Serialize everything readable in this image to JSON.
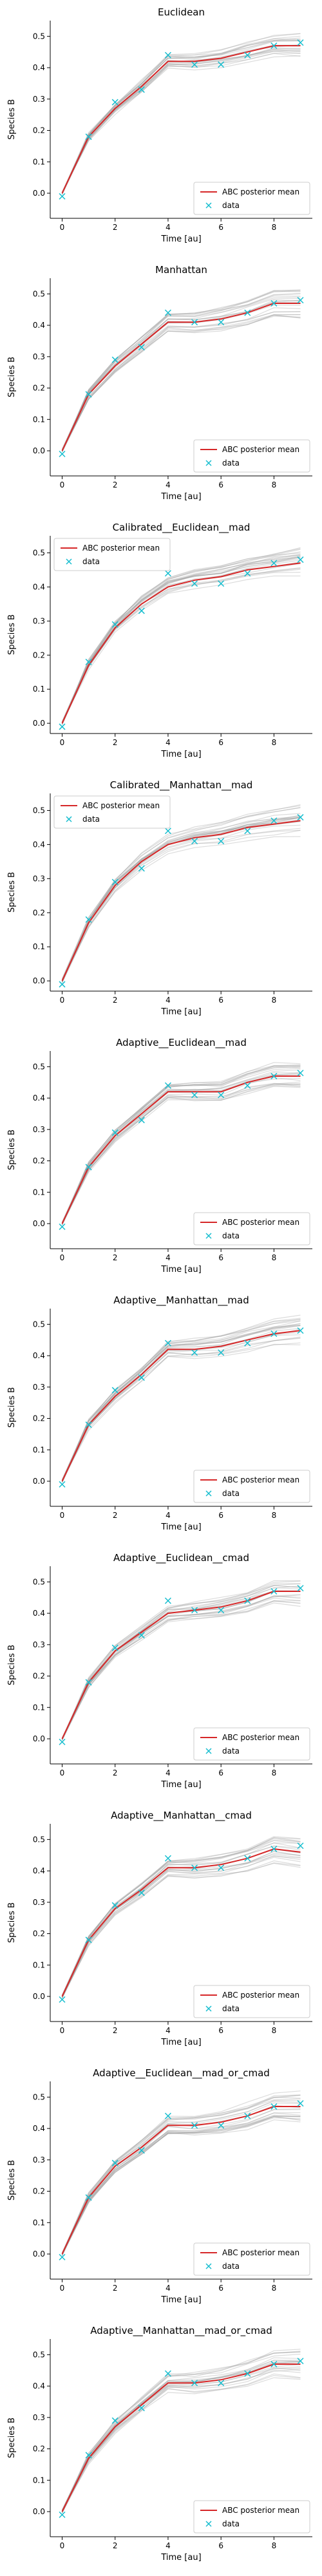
{
  "chart_data": [
    {
      "type": "line",
      "title": "Euclidean",
      "xlabel": "Time [au]",
      "ylabel": "Species B",
      "xlim": [
        -0.45,
        9.45
      ],
      "ylim": [
        -0.08,
        0.55
      ],
      "xticks": [
        0,
        2,
        4,
        6,
        8
      ],
      "yticks": [
        0.0,
        0.1,
        0.2,
        0.3,
        0.4,
        0.5
      ],
      "legend": "bottom-right",
      "legend_entries": [
        "ABC posterior mean",
        "data"
      ],
      "x": [
        0,
        1,
        2,
        3,
        4,
        5,
        6,
        7,
        8,
        9
      ],
      "series": [
        {
          "name": "ABC posterior mean",
          "values": [
            0.0,
            0.18,
            0.27,
            0.34,
            0.42,
            0.42,
            0.43,
            0.45,
            0.47,
            0.47
          ],
          "color": "#d62728"
        },
        {
          "name": "data",
          "values": [
            -0.01,
            0.18,
            0.29,
            0.33,
            0.44,
            0.41,
            0.41,
            0.44,
            0.47,
            0.48
          ],
          "color": "#17becf"
        }
      ]
    },
    {
      "type": "line",
      "title": "Manhattan",
      "xlabel": "Time [au]",
      "ylabel": "Species B",
      "xlim": [
        -0.45,
        9.45
      ],
      "ylim": [
        -0.08,
        0.55
      ],
      "xticks": [
        0,
        2,
        4,
        6,
        8
      ],
      "yticks": [
        0.0,
        0.1,
        0.2,
        0.3,
        0.4,
        0.5
      ],
      "legend": "bottom-right",
      "legend_entries": [
        "ABC posterior mean",
        "data"
      ],
      "x": [
        0,
        1,
        2,
        3,
        4,
        5,
        6,
        7,
        8,
        9
      ],
      "series": [
        {
          "name": "ABC posterior mean",
          "values": [
            0.0,
            0.18,
            0.27,
            0.34,
            0.41,
            0.41,
            0.42,
            0.44,
            0.47,
            0.47
          ],
          "color": "#d62728"
        },
        {
          "name": "data",
          "values": [
            -0.01,
            0.18,
            0.29,
            0.33,
            0.44,
            0.41,
            0.41,
            0.44,
            0.47,
            0.48
          ],
          "color": "#17becf"
        }
      ]
    },
    {
      "type": "line",
      "title": "Calibrated__Euclidean__mad",
      "xlabel": "Time [au]",
      "ylabel": "Species B",
      "xlim": [
        -0.45,
        9.45
      ],
      "ylim": [
        -0.03,
        0.55
      ],
      "xticks": [
        0,
        2,
        4,
        6,
        8
      ],
      "yticks": [
        0.0,
        0.1,
        0.2,
        0.3,
        0.4,
        0.5
      ],
      "legend": "top-left",
      "legend_entries": [
        "ABC posterior mean",
        "data"
      ],
      "x": [
        0,
        1,
        2,
        3,
        4,
        5,
        6,
        7,
        8,
        9
      ],
      "series": [
        {
          "name": "ABC posterior mean",
          "values": [
            0.0,
            0.17,
            0.28,
            0.35,
            0.4,
            0.42,
            0.43,
            0.45,
            0.46,
            0.47
          ],
          "color": "#d62728"
        },
        {
          "name": "data",
          "values": [
            -0.01,
            0.18,
            0.29,
            0.33,
            0.44,
            0.41,
            0.41,
            0.44,
            0.47,
            0.48
          ],
          "color": "#17becf"
        }
      ]
    },
    {
      "type": "line",
      "title": "Calibrated__Manhattan__mad",
      "xlabel": "Time [au]",
      "ylabel": "Species B",
      "xlim": [
        -0.45,
        9.45
      ],
      "ylim": [
        -0.03,
        0.55
      ],
      "xticks": [
        0,
        2,
        4,
        6,
        8
      ],
      "yticks": [
        0.0,
        0.1,
        0.2,
        0.3,
        0.4,
        0.5
      ],
      "legend": "top-left",
      "legend_entries": [
        "ABC posterior mean",
        "data"
      ],
      "x": [
        0,
        1,
        2,
        3,
        4,
        5,
        6,
        7,
        8,
        9
      ],
      "series": [
        {
          "name": "ABC posterior mean",
          "values": [
            0.0,
            0.17,
            0.28,
            0.35,
            0.4,
            0.42,
            0.43,
            0.45,
            0.46,
            0.47
          ],
          "color": "#d62728"
        },
        {
          "name": "data",
          "values": [
            -0.01,
            0.18,
            0.29,
            0.33,
            0.44,
            0.41,
            0.41,
            0.44,
            0.47,
            0.48
          ],
          "color": "#17becf"
        }
      ]
    },
    {
      "type": "line",
      "title": "Adaptive__Euclidean__mad",
      "xlabel": "Time [au]",
      "ylabel": "Species B",
      "xlim": [
        -0.45,
        9.45
      ],
      "ylim": [
        -0.08,
        0.55
      ],
      "xticks": [
        0,
        2,
        4,
        6,
        8
      ],
      "yticks": [
        0.0,
        0.1,
        0.2,
        0.3,
        0.4,
        0.5
      ],
      "legend": "bottom-right",
      "legend_entries": [
        "ABC posterior mean",
        "data"
      ],
      "x": [
        0,
        1,
        2,
        3,
        4,
        5,
        6,
        7,
        8,
        9
      ],
      "series": [
        {
          "name": "ABC posterior mean",
          "values": [
            0.0,
            0.18,
            0.28,
            0.35,
            0.42,
            0.42,
            0.42,
            0.45,
            0.47,
            0.47
          ],
          "color": "#d62728"
        },
        {
          "name": "data",
          "values": [
            -0.01,
            0.18,
            0.29,
            0.33,
            0.44,
            0.41,
            0.41,
            0.44,
            0.47,
            0.48
          ],
          "color": "#17becf"
        }
      ]
    },
    {
      "type": "line",
      "title": "Adaptive__Manhattan__mad",
      "xlabel": "Time [au]",
      "ylabel": "Species B",
      "xlim": [
        -0.45,
        9.45
      ],
      "ylim": [
        -0.08,
        0.55
      ],
      "xticks": [
        0,
        2,
        4,
        6,
        8
      ],
      "yticks": [
        0.0,
        0.1,
        0.2,
        0.3,
        0.4,
        0.5
      ],
      "legend": "bottom-right",
      "legend_entries": [
        "ABC posterior mean",
        "data"
      ],
      "x": [
        0,
        1,
        2,
        3,
        4,
        5,
        6,
        7,
        8,
        9
      ],
      "series": [
        {
          "name": "ABC posterior mean",
          "values": [
            0.0,
            0.18,
            0.27,
            0.34,
            0.42,
            0.42,
            0.43,
            0.45,
            0.47,
            0.48
          ],
          "color": "#d62728"
        },
        {
          "name": "data",
          "values": [
            -0.01,
            0.18,
            0.29,
            0.33,
            0.44,
            0.41,
            0.41,
            0.44,
            0.47,
            0.48
          ],
          "color": "#17becf"
        }
      ]
    },
    {
      "type": "line",
      "title": "Adaptive__Euclidean__cmad",
      "xlabel": "Time [au]",
      "ylabel": "Species B",
      "xlim": [
        -0.45,
        9.45
      ],
      "ylim": [
        -0.08,
        0.55
      ],
      "xticks": [
        0,
        2,
        4,
        6,
        8
      ],
      "yticks": [
        0.0,
        0.1,
        0.2,
        0.3,
        0.4,
        0.5
      ],
      "legend": "bottom-right",
      "legend_entries": [
        "ABC posterior mean",
        "data"
      ],
      "x": [
        0,
        1,
        2,
        3,
        4,
        5,
        6,
        7,
        8,
        9
      ],
      "series": [
        {
          "name": "ABC posterior mean",
          "values": [
            0.0,
            0.18,
            0.28,
            0.34,
            0.4,
            0.41,
            0.42,
            0.44,
            0.47,
            0.47
          ],
          "color": "#d62728"
        },
        {
          "name": "data",
          "values": [
            -0.01,
            0.18,
            0.29,
            0.33,
            0.44,
            0.41,
            0.41,
            0.44,
            0.47,
            0.48
          ],
          "color": "#17becf"
        }
      ]
    },
    {
      "type": "line",
      "title": "Adaptive__Manhattan__cmad",
      "xlabel": "Time [au]",
      "ylabel": "Species B",
      "xlim": [
        -0.45,
        9.45
      ],
      "ylim": [
        -0.08,
        0.55
      ],
      "xticks": [
        0,
        2,
        4,
        6,
        8
      ],
      "yticks": [
        0.0,
        0.1,
        0.2,
        0.3,
        0.4,
        0.5
      ],
      "legend": "bottom-right",
      "legend_entries": [
        "ABC posterior mean",
        "data"
      ],
      "x": [
        0,
        1,
        2,
        3,
        4,
        5,
        6,
        7,
        8,
        9
      ],
      "series": [
        {
          "name": "ABC posterior mean",
          "values": [
            0.0,
            0.18,
            0.28,
            0.34,
            0.41,
            0.41,
            0.42,
            0.44,
            0.47,
            0.46
          ],
          "color": "#d62728"
        },
        {
          "name": "data",
          "values": [
            -0.01,
            0.18,
            0.29,
            0.33,
            0.44,
            0.41,
            0.41,
            0.44,
            0.47,
            0.48
          ],
          "color": "#17becf"
        }
      ]
    },
    {
      "type": "line",
      "title": "Adaptive__Euclidean__mad_or_cmad",
      "xlabel": "Time [au]",
      "ylabel": "Species B",
      "xlim": [
        -0.45,
        9.45
      ],
      "ylim": [
        -0.08,
        0.55
      ],
      "xticks": [
        0,
        2,
        4,
        6,
        8
      ],
      "yticks": [
        0.0,
        0.1,
        0.2,
        0.3,
        0.4,
        0.5
      ],
      "legend": "bottom-right",
      "legend_entries": [
        "ABC posterior mean",
        "data"
      ],
      "x": [
        0,
        1,
        2,
        3,
        4,
        5,
        6,
        7,
        8,
        9
      ],
      "series": [
        {
          "name": "ABC posterior mean",
          "values": [
            0.0,
            0.18,
            0.28,
            0.34,
            0.41,
            0.41,
            0.42,
            0.44,
            0.47,
            0.47
          ],
          "color": "#d62728"
        },
        {
          "name": "data",
          "values": [
            -0.01,
            0.18,
            0.29,
            0.33,
            0.44,
            0.41,
            0.41,
            0.44,
            0.47,
            0.48
          ],
          "color": "#17becf"
        }
      ]
    },
    {
      "type": "line",
      "title": "Adaptive__Manhattan__mad_or_cmad",
      "xlabel": "Time [au]",
      "ylabel": "Species B",
      "xlim": [
        -0.45,
        9.45
      ],
      "ylim": [
        -0.08,
        0.55
      ],
      "xticks": [
        0,
        2,
        4,
        6,
        8
      ],
      "yticks": [
        0.0,
        0.1,
        0.2,
        0.3,
        0.4,
        0.5
      ],
      "legend": "bottom-right",
      "legend_entries": [
        "ABC posterior mean",
        "data"
      ],
      "x": [
        0,
        1,
        2,
        3,
        4,
        5,
        6,
        7,
        8,
        9
      ],
      "series": [
        {
          "name": "ABC posterior mean",
          "values": [
            0.0,
            0.17,
            0.27,
            0.34,
            0.41,
            0.41,
            0.42,
            0.44,
            0.47,
            0.47
          ],
          "color": "#d62728"
        },
        {
          "name": "data",
          "values": [
            -0.01,
            0.18,
            0.29,
            0.33,
            0.44,
            0.41,
            0.41,
            0.44,
            0.47,
            0.48
          ],
          "color": "#17becf"
        }
      ]
    }
  ]
}
